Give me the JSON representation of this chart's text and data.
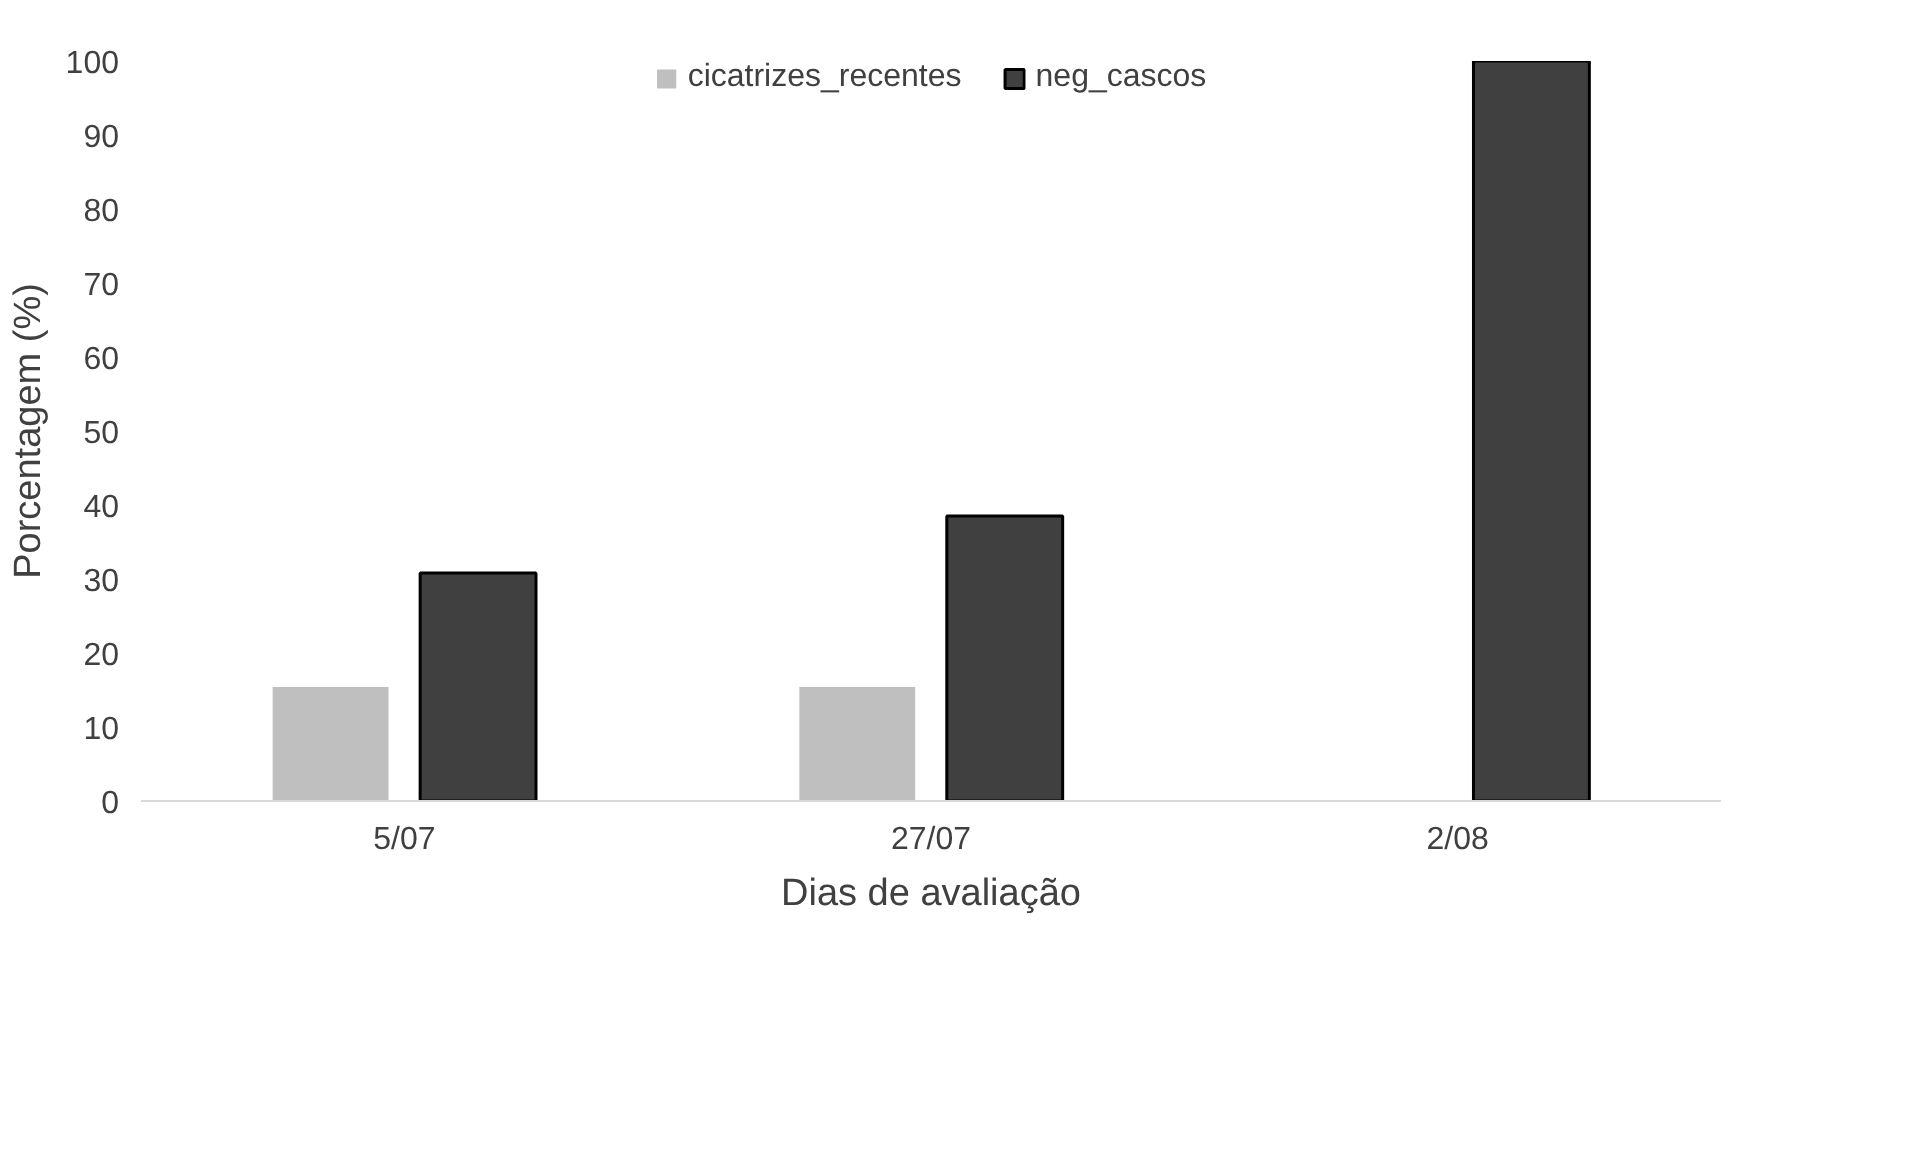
{
  "chart_data": {
    "type": "bar",
    "xlabel": "Dias de avaliação",
    "ylabel": "Porcentagem (%)",
    "categories": [
      "5/07",
      "27/07",
      "2/08"
    ],
    "series": [
      {
        "name": "cicatrizes_recentes",
        "color": "#bfbfbf",
        "values": [
          15.4,
          15.4,
          0
        ]
      },
      {
        "name": "neg_cascos",
        "color": "#404040",
        "values": [
          30.8,
          38.5,
          100
        ]
      }
    ],
    "ylim": [
      0,
      100
    ],
    "yticks": [
      0,
      10,
      20,
      30,
      40,
      50,
      60,
      70,
      80,
      90,
      100
    ],
    "grid": false,
    "legend": "top"
  }
}
